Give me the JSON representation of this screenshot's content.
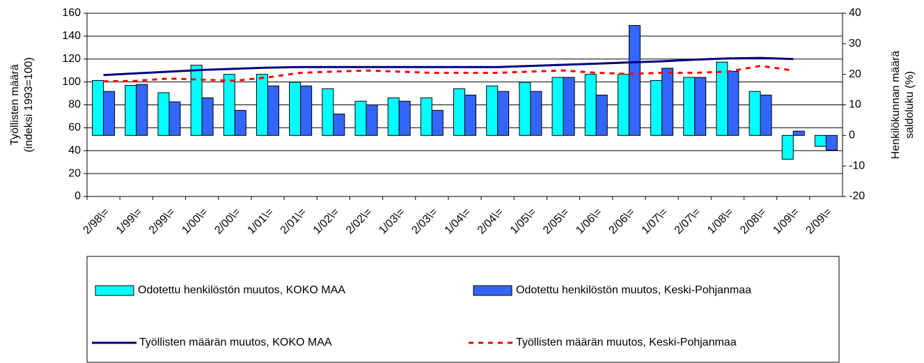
{
  "chart_data": {
    "type": "bar-line",
    "categories": [
      "2/98\\=",
      "1/99\\=",
      "2/99\\=",
      "1/00\\=",
      "2/00\\=",
      "1/01\\=",
      "2/01\\=",
      "1/02\\=",
      "2/02\\=",
      "1/03\\=",
      "2/03\\=",
      "1/04\\=",
      "2/04\\=",
      "1/05\\=",
      "2/05\\=",
      "1/06\\=",
      "2/06\\=",
      "1/07\\=",
      "2/07\\=",
      "1/08\\=",
      "2/08\\=",
      "1/09\\=",
      "2/09\\="
    ],
    "ylabel": [
      "Työllisten määrä",
      "(indeksi 1993=100)"
    ],
    "y2label": [
      "Henkilökunnan määrä",
      "saldoluku (%)"
    ],
    "ylim": [
      0,
      160
    ],
    "yticks": [
      0,
      20,
      40,
      60,
      80,
      100,
      120,
      140,
      160
    ],
    "y2lim": [
      -20,
      40
    ],
    "y2ticks": [
      -20,
      -10,
      0,
      10,
      20,
      30,
      40
    ],
    "series": [
      {
        "name": "Odotettu henkilöstön muutos, KOKO MAA",
        "type": "bar",
        "axis": "y2",
        "color": "#00ffff",
        "values": [
          18,
          16.4,
          14,
          23,
          20,
          20,
          17.4,
          15.3,
          11.2,
          12.3,
          12.3,
          15.3,
          16.2,
          17.4,
          19,
          20,
          20,
          18,
          19,
          24,
          14.4,
          -7.8,
          -3.6
        ]
      },
      {
        "name": "Odotettu henkilöstön muutos, Keski-Pohjanmaa",
        "type": "bar",
        "axis": "y2",
        "color": "#3366ff",
        "values": [
          14.4,
          16.7,
          11,
          12.3,
          8.2,
          16.2,
          16.2,
          7,
          10,
          11.2,
          8.2,
          13.2,
          14.4,
          14.4,
          19,
          13.2,
          36,
          22,
          19,
          21,
          13.2,
          1.4,
          -4.8
        ]
      },
      {
        "name": "Työllisten määrän muutos, KOKO MAA",
        "type": "line",
        "axis": "y",
        "color": "#000080",
        "dashed": false,
        "values": [
          106,
          107.5,
          109,
          110.5,
          111.5,
          112.5,
          113,
          113,
          113,
          113,
          113,
          113,
          113,
          114,
          115,
          116,
          117,
          118,
          119.5,
          120.5,
          121,
          120,
          null
        ]
      },
      {
        "name": "Työllisten määrän muutos, Keski-Pohjanmaa",
        "type": "line",
        "axis": "y",
        "color": "#ff0000",
        "dashed": true,
        "values": [
          100.5,
          101,
          103,
          102,
          101,
          104,
          108,
          109,
          110,
          109,
          108,
          108,
          108,
          109,
          110,
          108,
          107,
          108,
          108,
          109,
          114,
          110,
          null
        ]
      }
    ]
  }
}
